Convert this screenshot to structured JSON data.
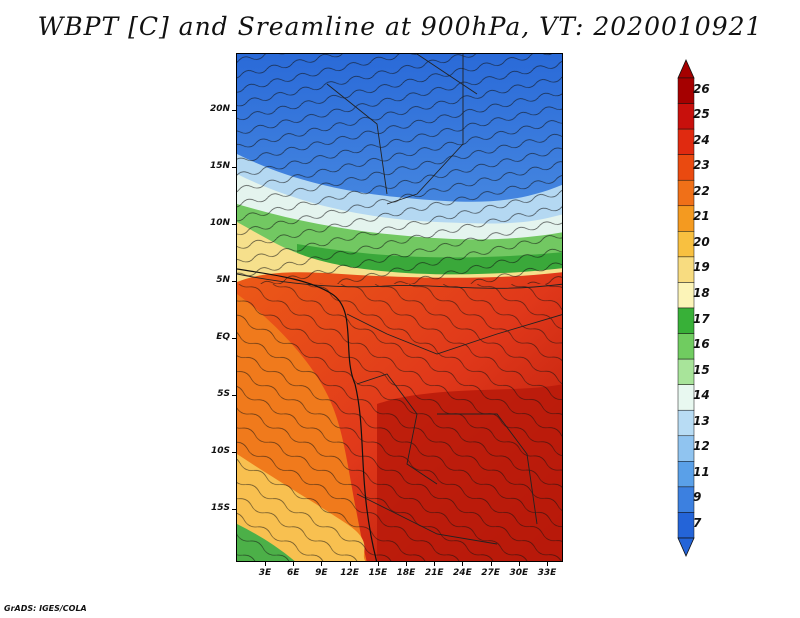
{
  "title": "WBPT [C] and Sreamline at 900hPa, VT: 2020010921",
  "credit": "GrADS: IGES/COLA",
  "map": {
    "lat_labels": [
      "20N",
      "15N",
      "10N",
      "5N",
      "EQ",
      "5S",
      "10S",
      "15S"
    ],
    "lon_labels": [
      "3E",
      "6E",
      "9E",
      "12E",
      "15E",
      "18E",
      "21E",
      "24E",
      "27E",
      "30E",
      "33E"
    ]
  },
  "colorbar": {
    "levels": [
      "26",
      "25",
      "24",
      "23",
      "22",
      "21",
      "20",
      "19",
      "18",
      "17",
      "16",
      "15",
      "14",
      "13",
      "12",
      "11",
      "9",
      "7"
    ],
    "colors": [
      "#a50000",
      "#c8100c",
      "#e02a10",
      "#ea4a10",
      "#f07018",
      "#f49a20",
      "#f8c040",
      "#f8dc80",
      "#fcf4b8",
      "#38b038",
      "#70cc60",
      "#a8e49a",
      "#e8f8f0",
      "#b8dcf4",
      "#90c4f0",
      "#5aa0e8",
      "#3c80e0",
      "#2464d8"
    ]
  }
}
